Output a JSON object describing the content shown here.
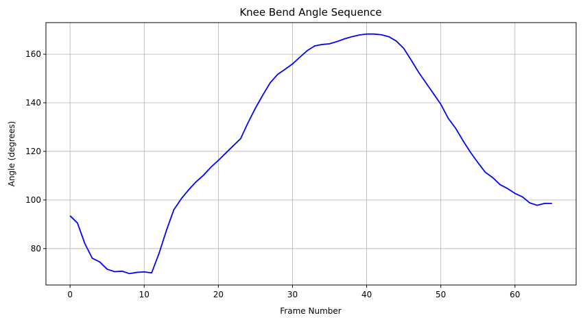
{
  "chart_data": {
    "type": "line",
    "title": "Knee Bend Angle Sequence",
    "xlabel": "Frame Number",
    "ylabel": "Angle (degrees)",
    "xlim": [
      -3.25,
      68.25
    ],
    "ylim": [
      65,
      173
    ],
    "xticks": [
      0,
      10,
      20,
      30,
      40,
      50,
      60
    ],
    "yticks": [
      80,
      100,
      120,
      140,
      160
    ],
    "grid": true,
    "line_color": "#0000ff",
    "x": [
      0,
      1,
      2,
      3,
      4,
      5,
      6,
      7,
      8,
      9,
      10,
      11,
      12,
      13,
      14,
      15,
      16,
      17,
      18,
      19,
      20,
      21,
      22,
      23,
      24,
      25,
      26,
      27,
      28,
      29,
      30,
      31,
      32,
      33,
      34,
      35,
      36,
      37,
      38,
      39,
      40,
      41,
      42,
      43,
      44,
      45,
      46,
      47,
      48,
      49,
      50,
      51,
      52,
      53,
      54,
      55,
      56,
      57,
      58,
      59,
      60,
      61,
      62,
      63,
      64,
      65
    ],
    "y": [
      93.5,
      90.5,
      82,
      76,
      74.5,
      71.5,
      70.5,
      70.7,
      69.7,
      70.2,
      70.4,
      70,
      78,
      87.5,
      96,
      100.5,
      104.2,
      107.5,
      110.2,
      113.5,
      116.3,
      119.3,
      122.3,
      125.2,
      131.8,
      137.8,
      143.2,
      148.3,
      151.7,
      153.8,
      156,
      158.8,
      161.5,
      163.4,
      164,
      164.3,
      165.2,
      166.3,
      167.2,
      167.9,
      168.3,
      168.3,
      168,
      167.2,
      165.4,
      162.4,
      157.6,
      152.6,
      148.2,
      143.8,
      139.4,
      133.6,
      129.5,
      124.4,
      119.6,
      115.4,
      111.4,
      109.2,
      106.3,
      104.7,
      102.7,
      101.3,
      98.8,
      97.8,
      98.6,
      98.6
    ]
  }
}
